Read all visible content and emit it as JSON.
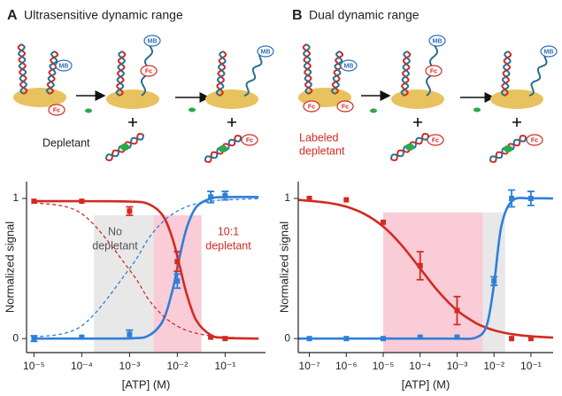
{
  "panels": [
    {
      "letter": "A",
      "title": "Ultrasensitive dynamic range",
      "labels": [
        "Depletant"
      ],
      "tags": [
        {
          "text": "MB",
          "color": "#2f6db5"
        },
        {
          "text": "Fc",
          "color": "#d42a20"
        },
        {
          "text": "MB",
          "color": "#2f6db5"
        },
        {
          "text": "Fc",
          "color": "#d42a20"
        },
        {
          "text": "MB",
          "color": "#2f6db5"
        },
        {
          "text": "Fc",
          "color": "#d42a20"
        }
      ]
    },
    {
      "letter": "B",
      "title": "Dual dynamic range",
      "labels": [
        "Labeled",
        "depletant"
      ],
      "label_color": "#d42a20",
      "tags": [
        {
          "text": "MB",
          "color": "#2f6db5"
        },
        {
          "text": "Fc",
          "color": "#d42a20"
        },
        {
          "text": "Fc",
          "color": "#d42a20"
        },
        {
          "text": "MB",
          "color": "#2f6db5"
        },
        {
          "text": "Fc",
          "color": "#d42a20"
        },
        {
          "text": "Fc",
          "color": "#d42a20"
        },
        {
          "text": "MB",
          "color": "#2f6db5"
        },
        {
          "text": "Fc",
          "color": "#d42a20"
        }
      ]
    }
  ],
  "chart_data": [
    {
      "type": "line",
      "xlabel": "[ATP] (M)",
      "ylabel": "Normalized signal",
      "xscale": "log",
      "xlim": [
        7e-06,
        0.7
      ],
      "ylim": [
        -0.1,
        1.12
      ],
      "xticks": [
        {
          "value": 1e-05,
          "label": "10⁻⁵"
        },
        {
          "value": 0.0001,
          "label": "10⁻⁴"
        },
        {
          "value": 0.001,
          "label": "10⁻³"
        },
        {
          "value": 0.01,
          "label": "10⁻²"
        },
        {
          "value": 0.1,
          "label": "10⁻¹"
        }
      ],
      "yticks": [
        0,
        1
      ],
      "regions": [
        {
          "x": [
            0.00018,
            0.02
          ],
          "y": [
            -0.1,
            0.88
          ],
          "color": "#e8e8e8"
        },
        {
          "x": [
            0.0032,
            0.032
          ],
          "y": [
            -0.1,
            0.88
          ],
          "color": "#f9ccd8"
        }
      ],
      "annotations": [
        {
          "lines": [
            "No",
            "depletant"
          ],
          "color": "#555555"
        },
        {
          "lines": [
            "10:1",
            "depletant"
          ],
          "color": "#d42a20"
        }
      ],
      "series": [
        {
          "color": "#d42a20",
          "style": "solid",
          "x": [
            1e-05,
            0.0001,
            0.001,
            0.00251,
            0.00501,
            0.00794,
            0.0112,
            0.0158,
            0.0251,
            0.0501,
            0.1,
            0.501
          ],
          "values": [
            0.98,
            0.98,
            0.978,
            0.96,
            0.876,
            0.712,
            0.518,
            0.315,
            0.128,
            0.025,
            0.005,
            0
          ]
        },
        {
          "color": "#2e7fd9",
          "style": "solid",
          "x": [
            1e-05,
            0.0001,
            0.001,
            0.00251,
            0.00501,
            0.00794,
            0.0112,
            0.0158,
            0.0251,
            0.0501,
            0.1,
            0.501
          ],
          "values": [
            0,
            0,
            0.002,
            0.021,
            0.128,
            0.347,
            0.586,
            0.792,
            0.939,
            0.999,
            1.01,
            1.01
          ]
        },
        {
          "color": "#d42a20",
          "style": "dashed",
          "x": [
            1e-05,
            0.0001,
            0.001,
            0.00251,
            0.00501,
            0.00794,
            0.0112,
            0.0158,
            0.0251,
            0.0501,
            0.1,
            0.501
          ],
          "values": [
            0.97,
            0.891,
            0.49,
            0.279,
            0.163,
            0.11,
            0.08,
            0.058,
            0.038,
            0.019,
            0.01,
            0.002
          ]
        },
        {
          "color": "#2e7fd9",
          "style": "dashed",
          "x": [
            1e-05,
            0.0001,
            0.001,
            0.00251,
            0.00501,
            0.00794,
            0.0112,
            0.0158,
            0.0251,
            0.0501,
            0.1,
            0.501
          ],
          "values": [
            0.01,
            0.091,
            0.5,
            0.715,
            0.834,
            0.888,
            0.918,
            0.941,
            0.962,
            0.98,
            0.99,
            0.998
          ]
        },
        {
          "color": "#d42a20",
          "style": "markers",
          "x": [
            1e-05,
            0.0001,
            0.001,
            0.01,
            0.05,
            0.1
          ],
          "values": [
            0.98,
            0.98,
            0.91,
            0.55,
            0.01,
            0
          ],
          "errors": [
            null,
            null,
            0.03,
            0.07,
            null,
            null
          ]
        },
        {
          "color": "#2e7fd9",
          "style": "markers",
          "x": [
            1e-05,
            0.0001,
            0.001,
            0.01,
            0.05,
            0.1
          ],
          "values": [
            0,
            0.01,
            0.03,
            0.41,
            1.01,
            1.02
          ],
          "errors": [
            0.02,
            null,
            0.03,
            0.05,
            0.04,
            0.03
          ]
        }
      ]
    },
    {
      "type": "line",
      "xlabel": "[ATP] (M)",
      "ylabel": "Normalized signal",
      "xscale": "log",
      "xlim": [
        5e-08,
        0.4
      ],
      "ylim": [
        -0.1,
        1.12
      ],
      "xticks": [
        {
          "value": 1e-07,
          "label": "10⁻⁷"
        },
        {
          "value": 1e-06,
          "label": "10⁻⁶"
        },
        {
          "value": 1e-05,
          "label": "10⁻⁵"
        },
        {
          "value": 0.0001,
          "label": "10⁻⁴"
        },
        {
          "value": 0.001,
          "label": "10⁻³"
        },
        {
          "value": 0.01,
          "label": "10⁻²"
        },
        {
          "value": 0.1,
          "label": "10⁻¹"
        }
      ],
      "yticks": [
        0,
        1
      ],
      "regions": [
        {
          "x": [
            1e-05,
            0.005
          ],
          "y": [
            -0.1,
            0.9
          ],
          "color": "#f9ccd8"
        },
        {
          "x": [
            0.005,
            0.02
          ],
          "y": [
            -0.1,
            0.9
          ],
          "color": "#e8e8e8"
        }
      ],
      "series": [
        {
          "color": "#d42a20",
          "style": "solid",
          "x": [
            5.01e-08,
            3.16e-07,
            1e-06,
            3.16e-06,
            1e-05,
            3.16e-05,
            0.0001,
            0.000316,
            0.001,
            0.00316,
            0.00631,
            0.01,
            0.0158,
            0.0316,
            0.1,
            0.398
          ],
          "values": [
            0.99,
            0.969,
            0.941,
            0.888,
            0.799,
            0.666,
            0.5,
            0.334,
            0.201,
            0.112,
            0.077,
            0.059,
            0.046,
            0.031,
            0.016,
            0.007
          ]
        },
        {
          "color": "#2e7fd9",
          "style": "solid",
          "x": [
            5.01e-08,
            3.16e-07,
            1e-06,
            3.16e-06,
            1e-05,
            3.16e-05,
            0.0001,
            0.000316,
            0.001,
            0.00316,
            0.00631,
            0.01,
            0.0158,
            0.0316,
            0.1,
            0.398
          ],
          "values": [
            0,
            0,
            0,
            0,
            0,
            0,
            0,
            0,
            0,
            0.006,
            0.091,
            0.387,
            0.8,
            0.984,
            1,
            1
          ]
        },
        {
          "color": "#d42a20",
          "style": "markers",
          "x": [
            1e-07,
            1e-06,
            1e-05,
            0.0001,
            0.001,
            0.03,
            0.1
          ],
          "values": [
            1,
            0.99,
            0.83,
            0.52,
            0.2,
            0,
            0
          ],
          "errors": [
            null,
            null,
            null,
            0.1,
            0.1,
            null,
            null
          ]
        },
        {
          "color": "#2e7fd9",
          "style": "markers",
          "x": [
            1e-07,
            1e-06,
            1e-05,
            0.0001,
            0.001,
            0.01,
            0.03,
            0.1
          ],
          "values": [
            0,
            0,
            0,
            0.01,
            0.01,
            0.41,
            1,
            1
          ],
          "errors": [
            null,
            null,
            null,
            null,
            null,
            0.03,
            0.06,
            0.05
          ]
        }
      ]
    }
  ]
}
